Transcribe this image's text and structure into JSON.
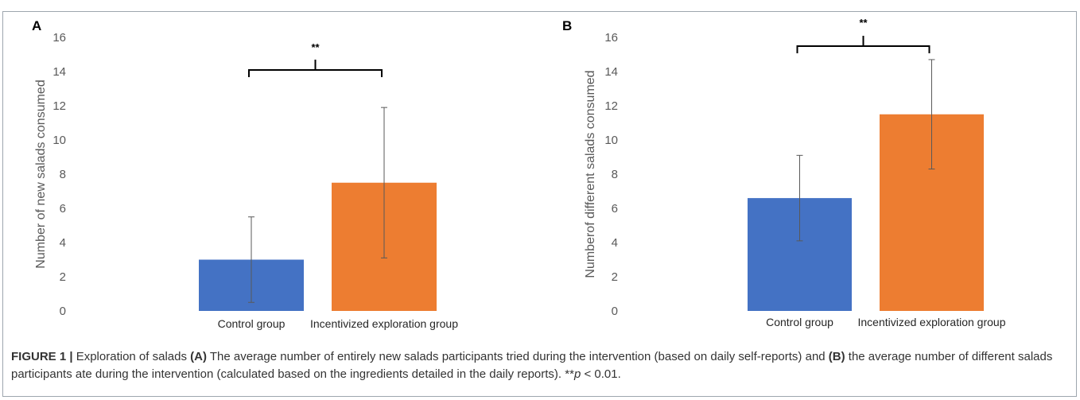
{
  "colors": {
    "control": "#4472c4",
    "incentivized": "#ed7d31",
    "error_bar": "#595959",
    "frame": "#9ea6ae"
  },
  "chart_data": [
    {
      "panel": "A",
      "type": "bar",
      "categories": [
        "Control group",
        "Incentivized exploration group"
      ],
      "values": [
        3.0,
        7.5
      ],
      "error": [
        2.5,
        4.4
      ],
      "ylabel": "Number of new salads consumed",
      "xlabel": "",
      "ylim": [
        0,
        16
      ],
      "yticks": [
        "0",
        "2",
        "4",
        "6",
        "8",
        "10",
        "12",
        "14",
        "16"
      ],
      "significance": "**",
      "grid": false
    },
    {
      "panel": "B",
      "type": "bar",
      "categories": [
        "Control group",
        "Incentivized exploration group"
      ],
      "values": [
        6.6,
        11.5
      ],
      "error": [
        2.5,
        3.2
      ],
      "ylabel": "Numberof different salads consumed",
      "xlabel": "",
      "ylim": [
        0,
        16
      ],
      "yticks": [
        "0",
        "2",
        "4",
        "6",
        "8",
        "10",
        "12",
        "14",
        "16"
      ],
      "significance": "**",
      "grid": false
    }
  ],
  "caption": {
    "label": "FIGURE 1 |",
    "intro": " Exploration of salads ",
    "a_ref": "(A)",
    "part1": " The average number of entirely new salads participants tried during the intervention (based on daily self-reports) and ",
    "b_ref": "(B)",
    "part2": " the average number of different salads participants ate during the intervention (calculated based on the ingredients detailed in the daily reports). **",
    "p_symbol": "p",
    "part3": " < 0.01."
  }
}
